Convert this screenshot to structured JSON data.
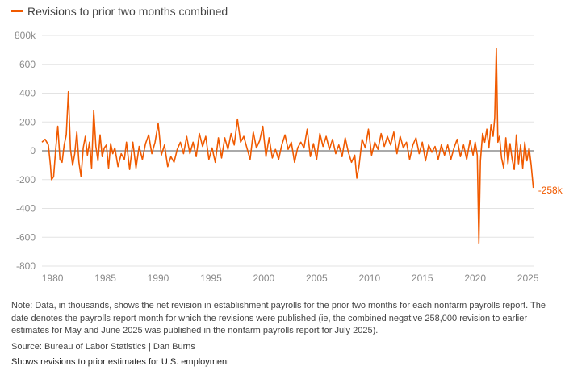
{
  "legend_label": "Revisions to prior two months combined",
  "accent_color": "#f05a00",
  "end_label": "-258k",
  "note": "Note: Data, in thousands, shows the net revision in establishment payrolls for the prior two months for each nonfarm payrolls report. The date denotes the payrolls report month for which the revisions were published (ie, the combined negative 258,000 revision to earlier estimates for May and June 2025 was published in the nonfarm payrolls report for July 2025).",
  "source": "Source: Bureau of Labor Statistics | Dan Burns",
  "caption": "Shows revisions to prior estimates for U.S. employment",
  "chart_data": {
    "type": "line",
    "title": "",
    "xlabel": "",
    "ylabel": "",
    "xlim": [
      1979,
      2025.6
    ],
    "ylim": [
      -800,
      800
    ],
    "y_ticks": [
      800,
      600,
      400,
      200,
      0,
      -200,
      -400,
      -600,
      -800
    ],
    "y_tick_labels": [
      "800k",
      "600",
      "400",
      "200",
      "0",
      "-200",
      "-400",
      "-600",
      "-800"
    ],
    "x_ticks": [
      1980,
      1985,
      1990,
      1995,
      2000,
      2005,
      2010,
      2015,
      2020,
      2025
    ],
    "x_tick_labels": [
      "1980",
      "1985",
      "1990",
      "1995",
      "2000",
      "2005",
      "2010",
      "2015",
      "2020",
      "2025"
    ],
    "grid": true,
    "zero_line": true,
    "series": [
      {
        "name": "Revisions to prior two months combined",
        "color": "#f05a00",
        "points": [
          [
            1979.0,
            60
          ],
          [
            1979.3,
            80
          ],
          [
            1979.6,
            40
          ],
          [
            1979.8,
            -100
          ],
          [
            1979.9,
            -200
          ],
          [
            1980.1,
            -180
          ],
          [
            1980.3,
            10
          ],
          [
            1980.5,
            170
          ],
          [
            1980.7,
            -60
          ],
          [
            1980.9,
            -80
          ],
          [
            1981.1,
            40
          ],
          [
            1981.3,
            110
          ],
          [
            1981.5,
            410
          ],
          [
            1981.7,
            10
          ],
          [
            1981.9,
            -100
          ],
          [
            1982.1,
            -20
          ],
          [
            1982.3,
            130
          ],
          [
            1982.5,
            -80
          ],
          [
            1982.7,
            -180
          ],
          [
            1982.9,
            20
          ],
          [
            1983.1,
            100
          ],
          [
            1983.3,
            -30
          ],
          [
            1983.5,
            60
          ],
          [
            1983.7,
            -120
          ],
          [
            1983.9,
            280
          ],
          [
            1984.1,
            30
          ],
          [
            1984.3,
            -70
          ],
          [
            1984.5,
            110
          ],
          [
            1984.7,
            -40
          ],
          [
            1984.9,
            20
          ],
          [
            1985.1,
            40
          ],
          [
            1985.3,
            -120
          ],
          [
            1985.5,
            50
          ],
          [
            1985.7,
            -20
          ],
          [
            1985.9,
            20
          ],
          [
            1986.2,
            -110
          ],
          [
            1986.5,
            -20
          ],
          [
            1986.8,
            -60
          ],
          [
            1987.0,
            60
          ],
          [
            1987.3,
            -130
          ],
          [
            1987.6,
            60
          ],
          [
            1987.9,
            -120
          ],
          [
            1988.2,
            30
          ],
          [
            1988.5,
            -60
          ],
          [
            1988.8,
            50
          ],
          [
            1989.1,
            110
          ],
          [
            1989.4,
            -20
          ],
          [
            1989.7,
            60
          ],
          [
            1990.0,
            190
          ],
          [
            1990.3,
            -30
          ],
          [
            1990.6,
            40
          ],
          [
            1990.9,
            -110
          ],
          [
            1991.2,
            -40
          ],
          [
            1991.5,
            -80
          ],
          [
            1991.8,
            10
          ],
          [
            1992.1,
            60
          ],
          [
            1992.4,
            -20
          ],
          [
            1992.7,
            100
          ],
          [
            1993.0,
            -20
          ],
          [
            1993.3,
            60
          ],
          [
            1993.6,
            -40
          ],
          [
            1993.9,
            120
          ],
          [
            1994.2,
            30
          ],
          [
            1994.5,
            100
          ],
          [
            1994.8,
            -60
          ],
          [
            1995.1,
            20
          ],
          [
            1995.4,
            -80
          ],
          [
            1995.7,
            90
          ],
          [
            1996.0,
            -50
          ],
          [
            1996.3,
            90
          ],
          [
            1996.6,
            10
          ],
          [
            1996.9,
            120
          ],
          [
            1997.2,
            40
          ],
          [
            1997.5,
            220
          ],
          [
            1997.8,
            60
          ],
          [
            1998.1,
            100
          ],
          [
            1998.4,
            20
          ],
          [
            1998.7,
            -60
          ],
          [
            1999.0,
            130
          ],
          [
            1999.3,
            20
          ],
          [
            1999.6,
            70
          ],
          [
            1999.9,
            170
          ],
          [
            2000.2,
            -40
          ],
          [
            2000.5,
            90
          ],
          [
            2000.8,
            -50
          ],
          [
            2001.1,
            10
          ],
          [
            2001.4,
            -60
          ],
          [
            2001.7,
            40
          ],
          [
            2002.0,
            110
          ],
          [
            2002.3,
            10
          ],
          [
            2002.6,
            60
          ],
          [
            2002.9,
            -80
          ],
          [
            2003.2,
            20
          ],
          [
            2003.5,
            60
          ],
          [
            2003.8,
            20
          ],
          [
            2004.1,
            150
          ],
          [
            2004.4,
            -40
          ],
          [
            2004.7,
            50
          ],
          [
            2005.0,
            -60
          ],
          [
            2005.3,
            120
          ],
          [
            2005.6,
            30
          ],
          [
            2005.9,
            100
          ],
          [
            2006.2,
            10
          ],
          [
            2006.5,
            80
          ],
          [
            2006.8,
            -20
          ],
          [
            2007.1,
            40
          ],
          [
            2007.4,
            -40
          ],
          [
            2007.7,
            90
          ],
          [
            2008.0,
            -10
          ],
          [
            2008.3,
            -80
          ],
          [
            2008.6,
            -30
          ],
          [
            2008.8,
            -190
          ],
          [
            2009.0,
            -110
          ],
          [
            2009.3,
            80
          ],
          [
            2009.6,
            20
          ],
          [
            2009.9,
            150
          ],
          [
            2010.2,
            -30
          ],
          [
            2010.5,
            60
          ],
          [
            2010.8,
            10
          ],
          [
            2011.1,
            120
          ],
          [
            2011.4,
            30
          ],
          [
            2011.7,
            100
          ],
          [
            2012.0,
            40
          ],
          [
            2012.3,
            130
          ],
          [
            2012.6,
            -20
          ],
          [
            2012.9,
            100
          ],
          [
            2013.2,
            20
          ],
          [
            2013.5,
            60
          ],
          [
            2013.8,
            -60
          ],
          [
            2014.1,
            40
          ],
          [
            2014.4,
            90
          ],
          [
            2014.7,
            -20
          ],
          [
            2015.0,
            60
          ],
          [
            2015.3,
            -70
          ],
          [
            2015.6,
            40
          ],
          [
            2015.9,
            -10
          ],
          [
            2016.2,
            30
          ],
          [
            2016.5,
            -60
          ],
          [
            2016.8,
            40
          ],
          [
            2017.1,
            -30
          ],
          [
            2017.4,
            40
          ],
          [
            2017.7,
            -60
          ],
          [
            2018.0,
            20
          ],
          [
            2018.3,
            80
          ],
          [
            2018.6,
            -40
          ],
          [
            2018.9,
            40
          ],
          [
            2019.2,
            -60
          ],
          [
            2019.5,
            70
          ],
          [
            2019.8,
            -30
          ],
          [
            2020.0,
            60
          ],
          [
            2020.2,
            -30
          ],
          [
            2020.35,
            -640
          ],
          [
            2020.5,
            -70
          ],
          [
            2020.7,
            120
          ],
          [
            2020.9,
            60
          ],
          [
            2021.1,
            150
          ],
          [
            2021.3,
            20
          ],
          [
            2021.5,
            180
          ],
          [
            2021.7,
            100
          ],
          [
            2021.85,
            230
          ],
          [
            2022.0,
            710
          ],
          [
            2022.15,
            60
          ],
          [
            2022.3,
            100
          ],
          [
            2022.5,
            -50
          ],
          [
            2022.7,
            -120
          ],
          [
            2022.9,
            90
          ],
          [
            2023.1,
            -90
          ],
          [
            2023.3,
            50
          ],
          [
            2023.5,
            -60
          ],
          [
            2023.7,
            -130
          ],
          [
            2023.9,
            110
          ],
          [
            2024.1,
            -90
          ],
          [
            2024.3,
            40
          ],
          [
            2024.5,
            -120
          ],
          [
            2024.7,
            60
          ],
          [
            2024.9,
            -70
          ],
          [
            2025.1,
            20
          ],
          [
            2025.3,
            -100
          ],
          [
            2025.5,
            -258
          ]
        ]
      }
    ],
    "annotations": [
      {
        "text": "-258k",
        "x": 2025.5,
        "y": -258
      }
    ]
  }
}
